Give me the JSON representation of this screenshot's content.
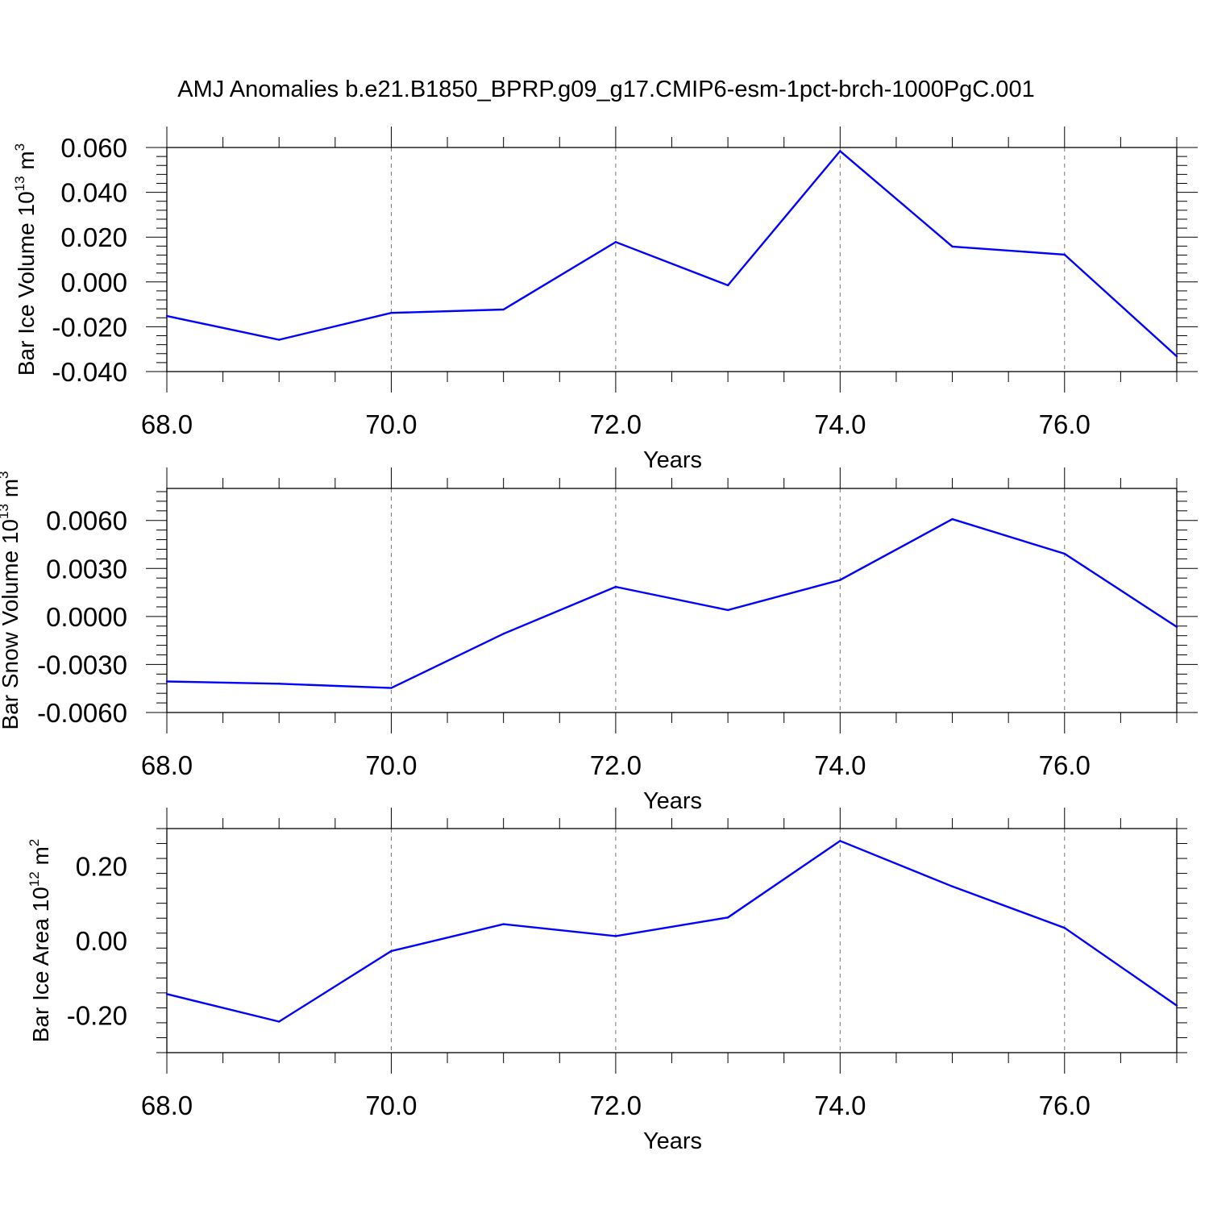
{
  "title": "AMJ Anomalies b.e21.B1850_BPRP.g09_g17.CMIP6-esm-1pct-brch-1000PgC.001",
  "colors": {
    "line": "#0000ff",
    "frame": "#000000",
    "grid": "#777777"
  },
  "chart_data": [
    {
      "type": "line",
      "xlabel": "Years",
      "ylabel": {
        "text": "Bar Ice Volume 10",
        "exp": "13",
        "unit": " m",
        "unit_exp": "3"
      },
      "xlim": [
        68,
        77
      ],
      "ylim": [
        -0.04,
        0.06
      ],
      "x_ticks": [
        "68.0",
        "70.0",
        "72.0",
        "74.0",
        "76.0"
      ],
      "y_ticks": [
        "-0.040",
        "-0.020",
        "0.000",
        "0.020",
        "0.040",
        "0.060"
      ],
      "grid": "vertical dashed at major x ticks",
      "series": [
        {
          "x": [
            68,
            69,
            70,
            71,
            72,
            73,
            74,
            75,
            76,
            77
          ],
          "values": [
            -0.0152,
            -0.0258,
            -0.0138,
            -0.0123,
            0.0178,
            -0.0015,
            0.0584,
            0.0158,
            0.0122,
            -0.0332
          ]
        }
      ]
    },
    {
      "type": "line",
      "xlabel": "Years",
      "ylabel": {
        "text": "Bar Snow Volume 10",
        "exp": "13",
        "unit": " m",
        "unit_exp": "3"
      },
      "xlim": [
        68,
        77
      ],
      "ylim": [
        -0.006,
        0.008
      ],
      "x_ticks": [
        "68.0",
        "70.0",
        "72.0",
        "74.0",
        "76.0"
      ],
      "y_ticks": [
        "-0.0060",
        "-0.0030",
        "0.0000",
        "0.0030",
        "0.0060"
      ],
      "grid": "vertical dashed at major x ticks",
      "series": [
        {
          "x": [
            68,
            69,
            70,
            71,
            72,
            73,
            74,
            75,
            76,
            77
          ],
          "values": [
            -0.00406,
            -0.0042,
            -0.00447,
            -0.00108,
            0.00185,
            0.0004,
            0.00228,
            0.00608,
            0.00392,
            -0.00065
          ]
        }
      ]
    },
    {
      "type": "line",
      "xlabel": "Years",
      "ylabel": {
        "text": "Bar Ice Area 10",
        "exp": "12",
        "unit": " m",
        "unit_exp": "2"
      },
      "xlim": [
        68,
        77
      ],
      "ylim": [
        -0.3,
        0.3
      ],
      "x_ticks": [
        "68.0",
        "70.0",
        "72.0",
        "74.0",
        "76.0"
      ],
      "y_ticks": [
        "-0.20",
        "0.00",
        "0.20"
      ],
      "grid": "vertical dashed at major x ticks",
      "series": [
        {
          "x": [
            68,
            69,
            70,
            71,
            72,
            73,
            74,
            75,
            76,
            77
          ],
          "values": [
            -0.143,
            -0.217,
            -0.028,
            0.044,
            0.012,
            0.062,
            0.267,
            0.145,
            0.034,
            -0.174
          ]
        }
      ]
    }
  ]
}
